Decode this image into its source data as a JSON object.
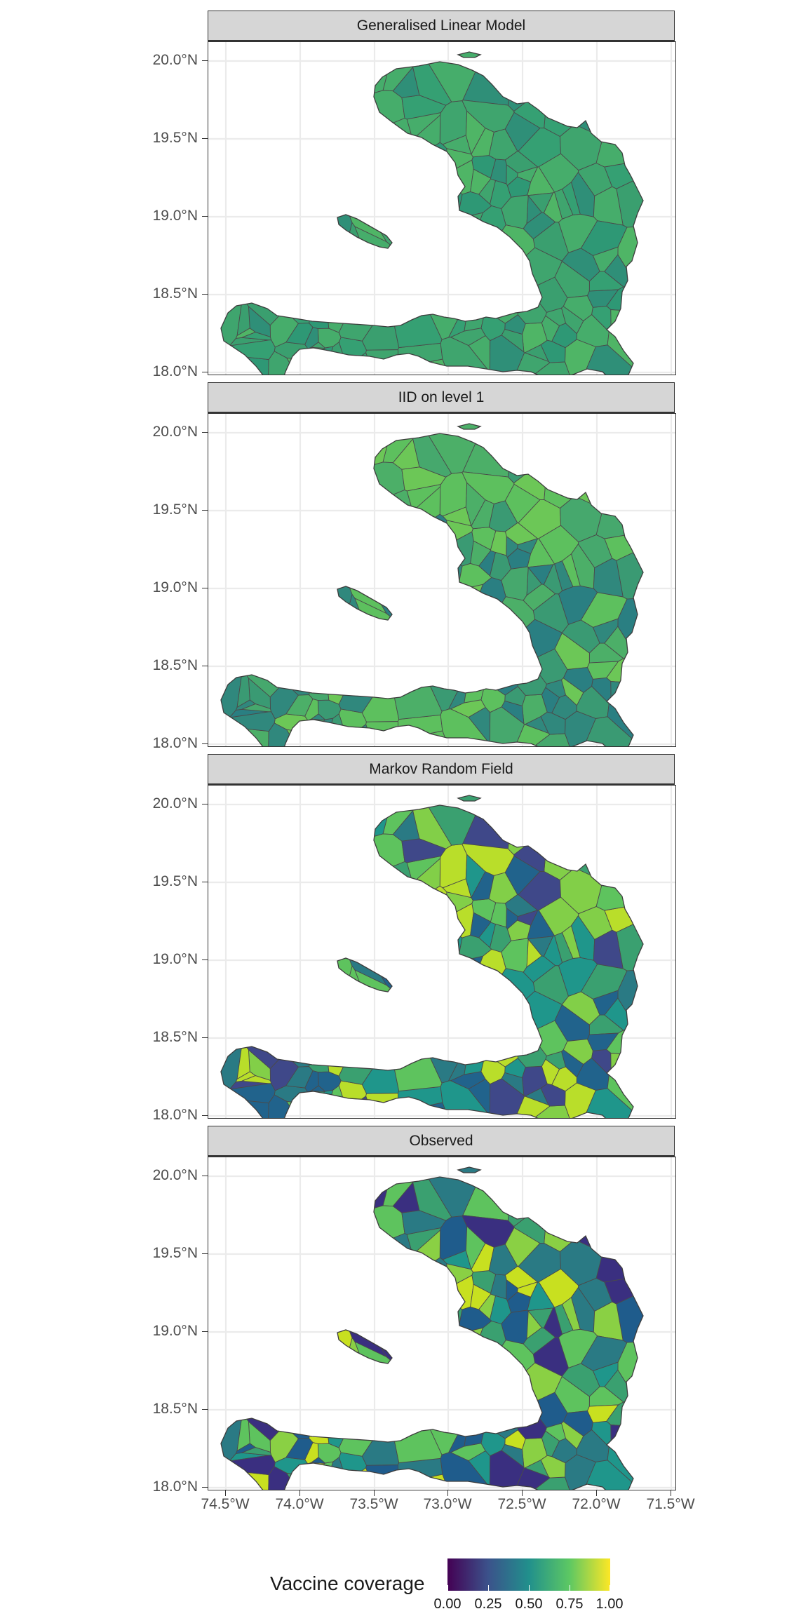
{
  "panels": [
    {
      "title": "Generalised Linear Model",
      "palette": [
        "#3a9f6f",
        "#3fa56e",
        "#35a073",
        "#46ad6b",
        "#2e9875",
        "#4fb566",
        "#2f8f78"
      ]
    },
    {
      "title": "IID on level 1",
      "palette": [
        "#2a7f82",
        "#30887d",
        "#4caf68",
        "#5dc05e",
        "#6cc757",
        "#3a9a73",
        "#46a86d"
      ]
    },
    {
      "title": "Markov Random Field",
      "palette": [
        "#21638c",
        "#2a7a84",
        "#3aa070",
        "#5ec35e",
        "#82cf48",
        "#b9de2a",
        "#1f968b",
        "#3f4889"
      ]
    },
    {
      "title": "Observed",
      "palette": [
        "#1f5c8c",
        "#2a7a84",
        "#3aa070",
        "#5ec35e",
        "#8ad044",
        "#c8e020",
        "#1f968b",
        "#3a2f80"
      ]
    }
  ],
  "axes": {
    "y_ticks": [
      "20.0°N",
      "19.5°N",
      "19.0°N",
      "18.5°N",
      "18.0°N"
    ],
    "x_ticks": [
      "74.5°W",
      "74.0°W",
      "73.5°W",
      "73.0°W",
      "72.5°W",
      "72.0°W",
      "71.5°W"
    ]
  },
  "legend": {
    "title": "Vaccine coverage",
    "labels": [
      "0.00",
      "0.25",
      "0.50",
      "0.75",
      "1.00"
    ],
    "colors": [
      "#440154",
      "#3b528b",
      "#21908c",
      "#5dc863",
      "#fde725"
    ],
    "range": [
      0,
      1
    ]
  }
}
